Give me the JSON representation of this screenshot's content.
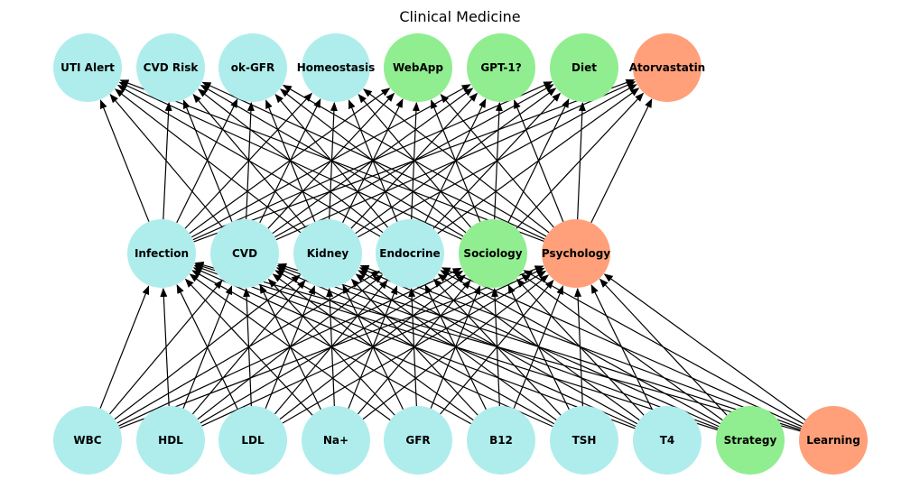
{
  "title": "Clinical Medicine",
  "colors": {
    "cyan": "#afeded",
    "green": "#90ee90",
    "orange": "#ffa07a",
    "edge": "#000000"
  },
  "layers": {
    "top": [
      {
        "id": "uti",
        "label": "UTI Alert",
        "color": "cyan"
      },
      {
        "id": "cvdrisk",
        "label": "CVD Risk",
        "color": "cyan"
      },
      {
        "id": "okgfr",
        "label": "ok-GFR",
        "color": "cyan"
      },
      {
        "id": "homeo",
        "label": "Homeostasis",
        "color": "cyan"
      },
      {
        "id": "webapp",
        "label": "WebApp",
        "color": "green"
      },
      {
        "id": "gpt",
        "label": "GPT-1?",
        "color": "green"
      },
      {
        "id": "diet",
        "label": "Diet",
        "color": "green"
      },
      {
        "id": "atorva",
        "label": "Atorvastatin",
        "color": "orange"
      }
    ],
    "middle": [
      {
        "id": "infection",
        "label": "Infection",
        "color": "cyan"
      },
      {
        "id": "cvd",
        "label": "CVD",
        "color": "cyan"
      },
      {
        "id": "kidney",
        "label": "Kidney",
        "color": "cyan"
      },
      {
        "id": "endocrine",
        "label": "Endocrine",
        "color": "cyan"
      },
      {
        "id": "sociology",
        "label": "Sociology",
        "color": "green"
      },
      {
        "id": "psychology",
        "label": "Psychology",
        "color": "orange"
      }
    ],
    "bottom": [
      {
        "id": "wbc",
        "label": "WBC",
        "color": "cyan"
      },
      {
        "id": "hdl",
        "label": "HDL",
        "color": "cyan"
      },
      {
        "id": "ldl",
        "label": "LDL",
        "color": "cyan"
      },
      {
        "id": "na",
        "label": "Na+",
        "color": "cyan"
      },
      {
        "id": "gfr",
        "label": "GFR",
        "color": "cyan"
      },
      {
        "id": "b12",
        "label": "B12",
        "color": "cyan"
      },
      {
        "id": "tsh",
        "label": "TSH",
        "color": "cyan"
      },
      {
        "id": "t4",
        "label": "T4",
        "color": "cyan"
      },
      {
        "id": "strategy",
        "label": "Strategy",
        "color": "green"
      },
      {
        "id": "learning",
        "label": "Learning",
        "color": "orange"
      }
    ]
  },
  "edges": {
    "bottom_to_middle": "all",
    "middle_to_top": "all"
  }
}
